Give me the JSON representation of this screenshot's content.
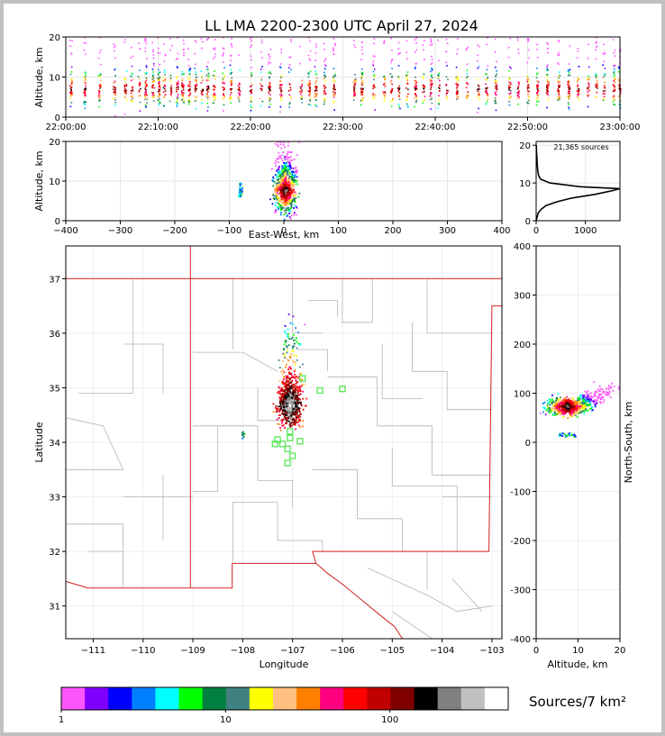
{
  "title": "LL LMA 2200-2300 UTC April 27, 2024",
  "chart_data": [
    {
      "id": "time-height",
      "type": "scatter",
      "ylabel": "Altitude, km",
      "xlim_seconds": [
        0,
        3600
      ],
      "ylim": [
        0,
        20
      ],
      "x_ticks": [
        "22:00:00",
        "22:10:00",
        "22:20:00",
        "22:30:00",
        "22:40:00",
        "22:50:00",
        "23:00:00"
      ],
      "y_ticks": [
        0,
        10,
        20
      ],
      "grid": true,
      "bursts_minutes": [
        0.5,
        2,
        3.6,
        5.2,
        6.4,
        7.1,
        7.9,
        8.6,
        9.4,
        10,
        10.6,
        11.3,
        12,
        12.6,
        13.3,
        14,
        14.7,
        15.3,
        16,
        17,
        17.8,
        18.7,
        20,
        21.1,
        22,
        23.2,
        24.2,
        25.4,
        26.3,
        27,
        28,
        29,
        31.2,
        32,
        33.3,
        34.4,
        35.2,
        36,
        36.9,
        37.8,
        38.7,
        39.5,
        40.3,
        41.2,
        42.3,
        43.4,
        44.6,
        45.5,
        46.5,
        48,
        48.9,
        50,
        51,
        52.1,
        53.3,
        54.4,
        55.4,
        56.5,
        57.4,
        58.2,
        59.3,
        59.9
      ]
    },
    {
      "id": "ew-height",
      "type": "heatmap",
      "xlabel": "East-West, km",
      "ylabel": "Altitude, km",
      "xlim": [
        -400,
        400
      ],
      "ylim": [
        0,
        20
      ],
      "x_ticks": [
        "−400",
        "−300",
        "−200",
        "−100",
        "0",
        "100",
        "200",
        "300",
        "400"
      ],
      "y_ticks": [
        0,
        10,
        20
      ],
      "grid": true
    },
    {
      "id": "alt-histogram",
      "type": "line",
      "annotation": "21,365 sources",
      "xlim": [
        0,
        1700
      ],
      "ylim": [
        0,
        21
      ],
      "x_ticks": [
        0,
        1000
      ],
      "y_ticks": [
        0,
        10,
        20
      ],
      "grid": true,
      "alt_km": [
        0,
        2,
        3,
        4,
        5,
        6,
        7,
        8,
        8.5,
        9,
        10,
        11,
        12,
        13,
        14,
        15,
        16,
        17,
        18,
        19,
        20
      ],
      "count": [
        0,
        40,
        100,
        200,
        420,
        720,
        1200,
        1560,
        1700,
        900,
        280,
        90,
        50,
        35,
        28,
        22,
        18,
        14,
        10,
        6,
        3
      ]
    },
    {
      "id": "plan-view",
      "type": "scatter",
      "xlabel": "Longitude",
      "ylabel": "Latitude",
      "xlim": [
        -111.55,
        -102.8
      ],
      "ylim": [
        30.4,
        37.6
      ],
      "x_ticks": [
        "−111",
        "−110",
        "−109",
        "−108",
        "−107",
        "−106",
        "−105",
        "−104",
        "−103"
      ],
      "y_ticks": [
        31,
        32,
        33,
        34,
        35,
        36,
        37
      ],
      "grid": true,
      "stations": [
        [
          -106.8,
          35.17
        ],
        [
          -106.45,
          34.95
        ],
        [
          -106.0,
          34.98
        ],
        [
          -107.3,
          34.05
        ],
        [
          -107.35,
          33.97
        ],
        [
          -107.2,
          33.97
        ],
        [
          -107.05,
          34.08
        ],
        [
          -107.05,
          34.2
        ],
        [
          -107.1,
          33.88
        ],
        [
          -107.0,
          33.75
        ],
        [
          -107.1,
          33.62
        ],
        [
          -106.85,
          34.02
        ]
      ]
    },
    {
      "id": "alt-ns",
      "type": "heatmap",
      "xlabel": "Altitude, km",
      "ylabel": "North-South, km",
      "xlim": [
        0,
        20
      ],
      "ylim": [
        -400,
        400
      ],
      "x_ticks": [
        0,
        10,
        20
      ],
      "y_ticks": [
        400,
        300,
        200,
        100,
        0,
        -100,
        -200,
        -300,
        -400
      ],
      "grid": true
    }
  ],
  "colorbar": {
    "label": "Sources/7 km²",
    "tick_labels": [
      "1",
      "10",
      "100"
    ],
    "colors": [
      "#ff55ff",
      "#8000ff",
      "#0000ff",
      "#0080ff",
      "#00ffff",
      "#00ff00",
      "#008040",
      "#408080",
      "#ffff00",
      "#ffc080",
      "#ff8000",
      "#ff0080",
      "#ff0000",
      "#c00000",
      "#800000",
      "#000000",
      "#808080",
      "#c0c0c0",
      "#ffffff"
    ]
  }
}
